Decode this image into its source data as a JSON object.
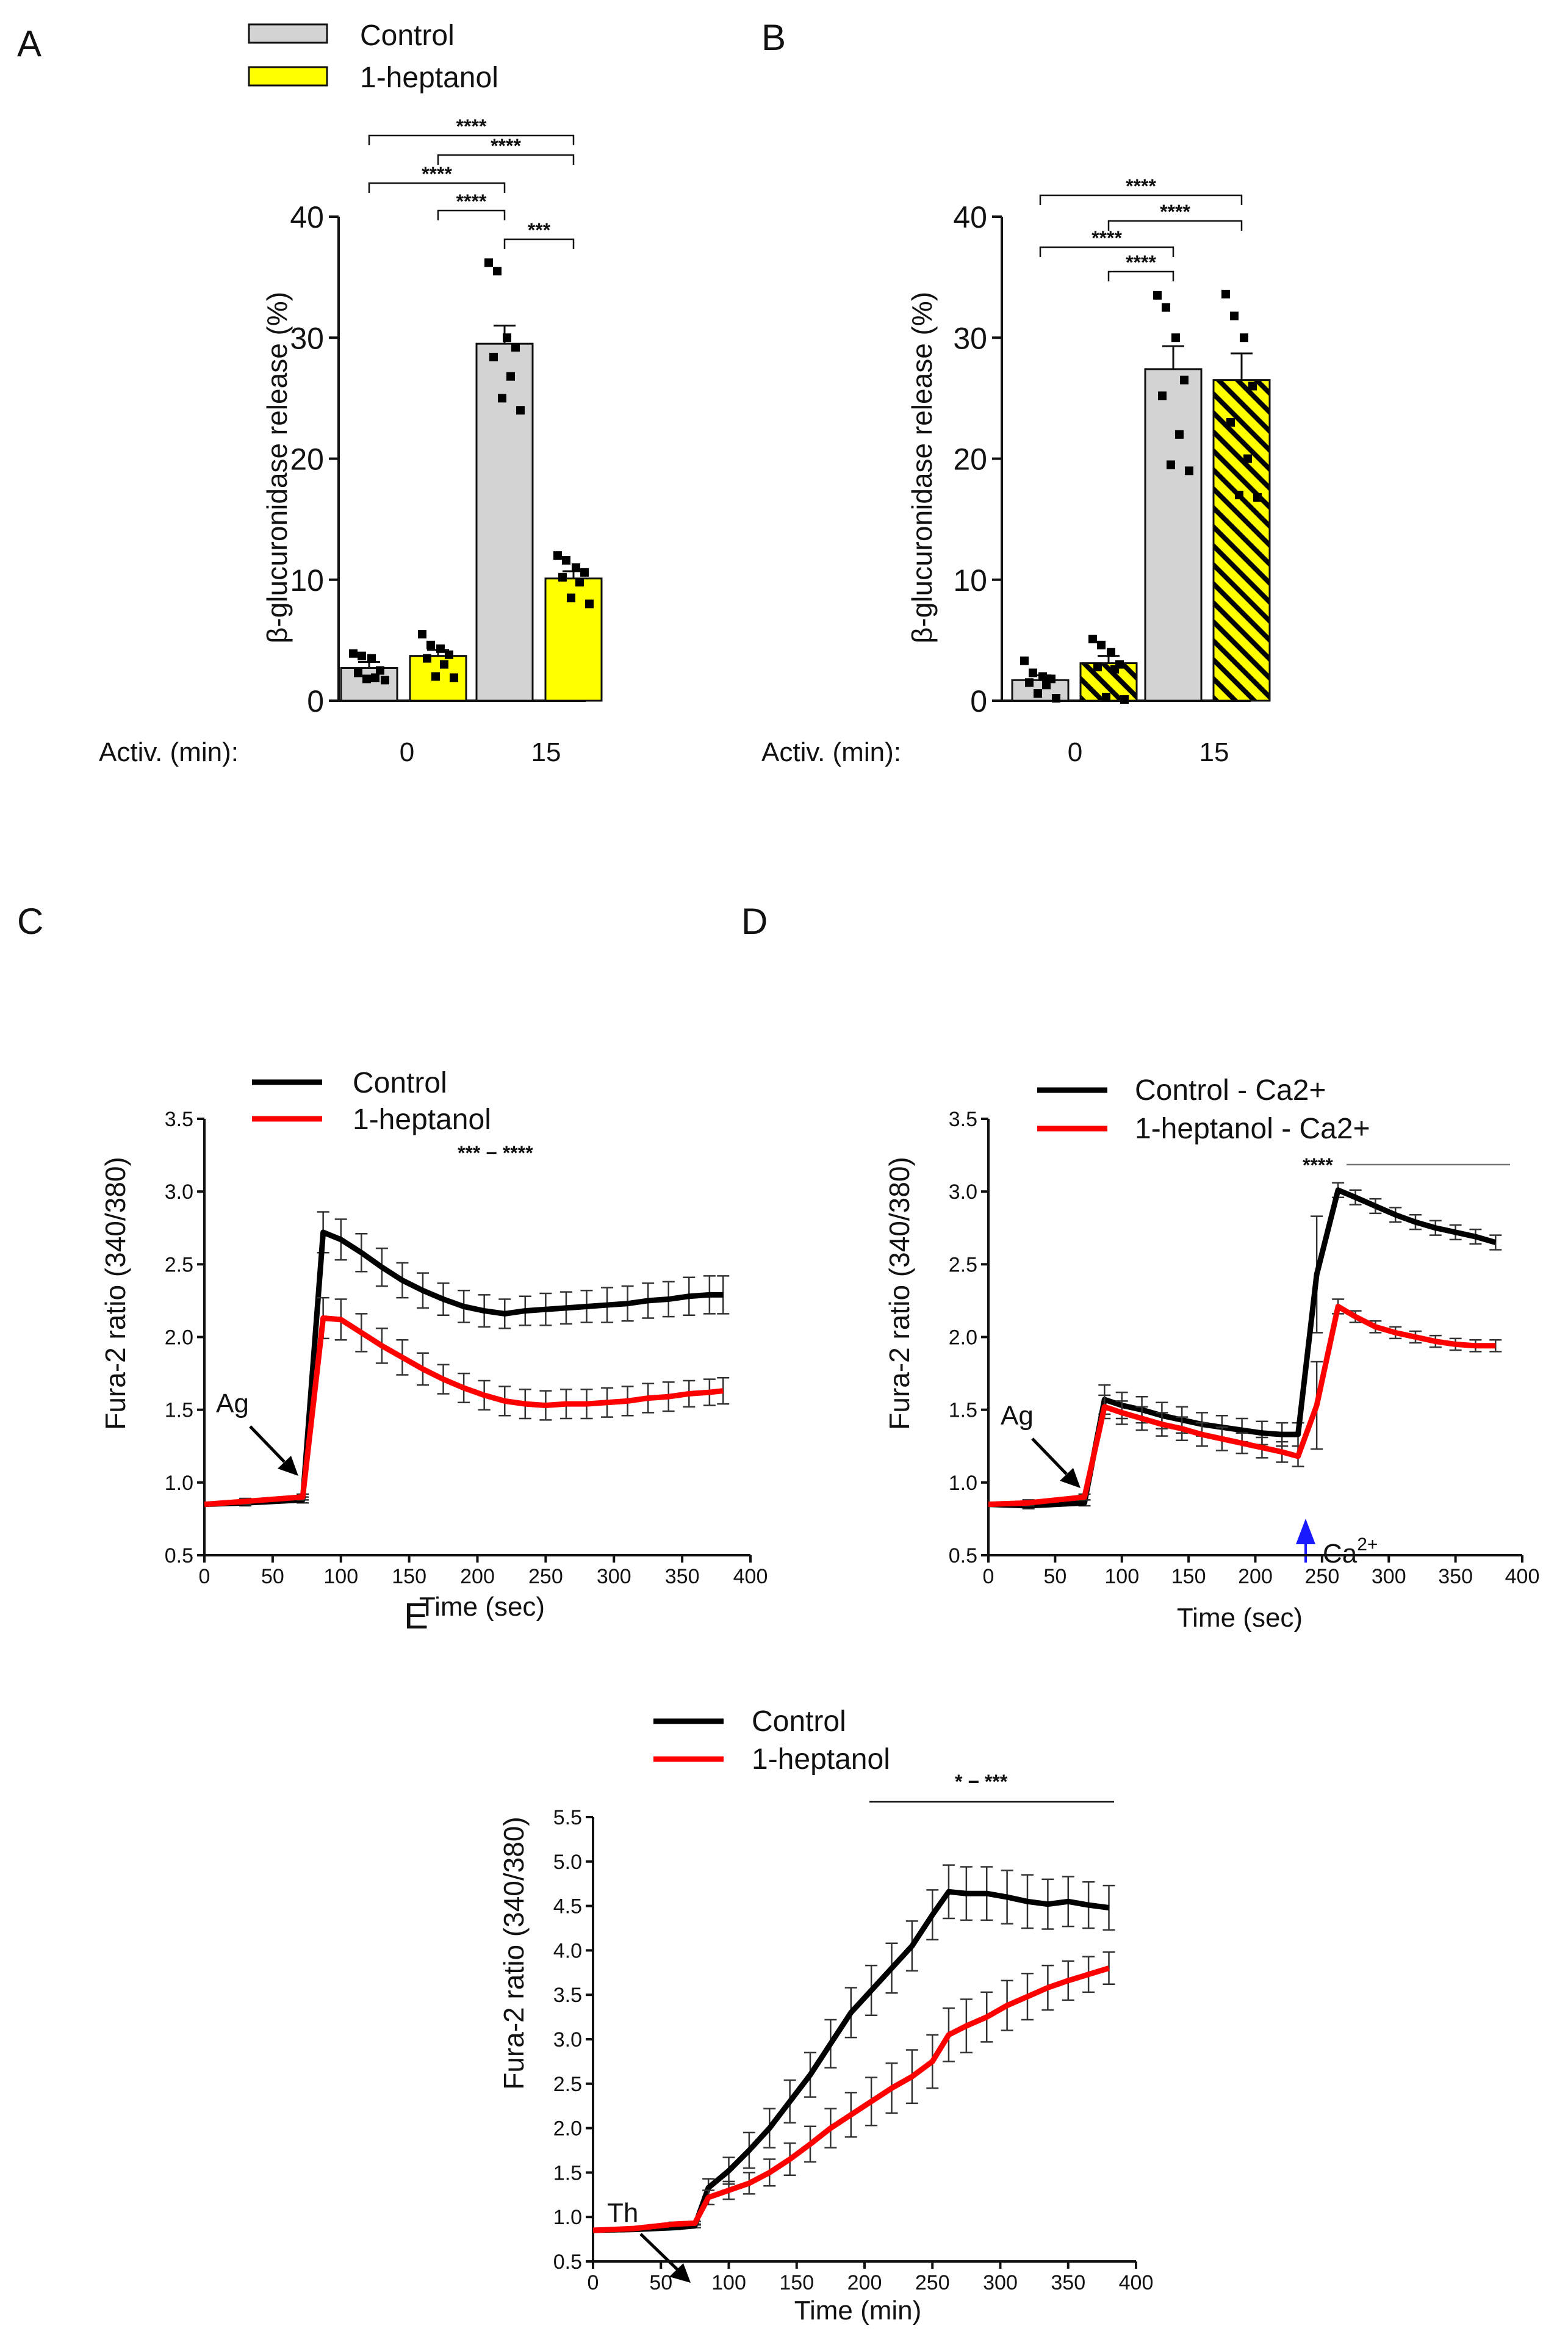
{
  "panels": {
    "A": {
      "letter": "A"
    },
    "B": {
      "letter": "B"
    },
    "C": {
      "letter": "C"
    },
    "D": {
      "letter": "D"
    },
    "E": {
      "letter": "E"
    }
  },
  "legend_ab": {
    "control": "Control",
    "heptanol": "1-heptanol"
  },
  "colors": {
    "control_bar": "#d3d3d3",
    "heptanol_bar": "#ffff00",
    "control_line": "#000000",
    "heptanol_line": "#ff0000",
    "calcium_arrow": "#1a1aff"
  },
  "annotations": {
    "ag_c": "Ag",
    "ag_d": "Ag",
    "th_e": "Th",
    "ca_d": "Ca",
    "ca_sup": "2+",
    "sig_c": "*** − ****",
    "sig_d": "****",
    "sig_e": "* − ***"
  },
  "chart_data": [
    {
      "id": "A",
      "type": "bar",
      "title": "",
      "ylabel": "β-glucuronidase release (%)",
      "xlabel": "Activ. (min):",
      "ylim": [
        0,
        40
      ],
      "yticks": [
        "0",
        "10",
        "20",
        "30",
        "40"
      ],
      "categories": [
        "0",
        "15"
      ],
      "series": [
        {
          "name": "Control",
          "values": [
            2.7,
            29.5
          ],
          "sem": [
            0.5,
            1.5
          ],
          "points": [
            [
              3.9,
              3.7,
              3.5,
              2.5,
              2.3,
              1.9,
              1.8,
              1.7
            ],
            [
              36.2,
              35.5,
              30.0,
              29.2,
              28.4,
              26.8,
              25.0,
              24.0
            ]
          ]
        },
        {
          "name": "1-heptanol",
          "values": [
            3.7,
            10.1
          ],
          "sem": [
            0.5,
            0.6
          ],
          "points": [
            [
              5.5,
              4.6,
              4.3,
              3.8,
              3.5,
              3.0,
              2.0,
              1.9
            ],
            [
              12.0,
              11.6,
              11.0,
              10.6,
              10.2,
              9.8,
              8.5,
              8.0
            ]
          ]
        }
      ],
      "significance": [
        {
          "from": "Control 0",
          "to": "1-heptanol 15",
          "label": "****"
        },
        {
          "from": "1-heptanol 0",
          "to": "1-heptanol 15",
          "label": "****"
        },
        {
          "from": "Control 0",
          "to": "Control 15",
          "label": "****"
        },
        {
          "from": "1-heptanol 0",
          "to": "Control 15",
          "label": "****"
        },
        {
          "from": "Control 15",
          "to": "1-heptanol 15",
          "label": "***"
        }
      ]
    },
    {
      "id": "B",
      "type": "bar",
      "title": "",
      "ylabel": "β-glucuronidase release (%)",
      "xlabel": "Activ. (min):",
      "ylim": [
        0,
        40
      ],
      "yticks": [
        "0",
        "10",
        "20",
        "30",
        "40"
      ],
      "categories": [
        "0",
        "15"
      ],
      "series": [
        {
          "name": "Control",
          "values": [
            1.7,
            27.4
          ],
          "sem": [
            0.4,
            1.9
          ],
          "points": [
            [
              3.3,
              2.3,
              2.0,
              1.8,
              1.5,
              1.3,
              0.6,
              0.2
            ],
            [
              33.5,
              32.5,
              30.0,
              26.5,
              25.2,
              22.0,
              19.5,
              19.0
            ]
          ]
        },
        {
          "name": "1-heptanol (hatched)",
          "values": [
            3.1,
            26.5
          ],
          "sem": [
            0.6,
            2.2
          ],
          "points": [
            [
              5.1,
              4.6,
              4.0,
              3.0,
              2.8,
              2.6,
              0.3,
              0.1
            ],
            [
              33.6,
              31.8,
              30.0,
              26.0,
              23.0,
              20.0,
              17.0,
              16.8
            ]
          ]
        }
      ],
      "significance": [
        {
          "from": "Control 0",
          "to": "1-heptanol 15",
          "label": "****"
        },
        {
          "from": "1-heptanol 0",
          "to": "1-heptanol 15",
          "label": "****"
        },
        {
          "from": "Control 0",
          "to": "Control 15",
          "label": "****"
        },
        {
          "from": "1-heptanol 0",
          "to": "Control 15",
          "label": "****"
        }
      ]
    },
    {
      "id": "C",
      "type": "line",
      "title": "",
      "xlabel": "Time (sec)",
      "ylabel": "Fura-2 ratio (340/380)",
      "xlim": [
        0,
        400
      ],
      "ylim": [
        0.5,
        3.5
      ],
      "xticks": [
        "0",
        "50",
        "100",
        "150",
        "200",
        "250",
        "300",
        "350",
        "400"
      ],
      "yticks": [
        "0.5",
        "1.0",
        "1.5",
        "2.0",
        "2.5",
        "3.0",
        "3.5"
      ],
      "series": [
        {
          "name": "Control",
          "x": [
            0,
            30,
            72,
            87,
            100,
            115,
            130,
            145,
            160,
            175,
            190,
            205,
            220,
            235,
            250,
            265,
            280,
            295,
            310,
            325,
            340,
            355,
            370,
            380
          ],
          "y": [
            0.85,
            0.86,
            0.88,
            2.72,
            2.67,
            2.58,
            2.48,
            2.39,
            2.32,
            2.26,
            2.21,
            2.18,
            2.16,
            2.18,
            2.19,
            2.2,
            2.21,
            2.22,
            2.23,
            2.25,
            2.26,
            2.28,
            2.29,
            2.29
          ],
          "err": [
            0.02,
            0.02,
            0.02,
            0.14,
            0.14,
            0.13,
            0.13,
            0.12,
            0.12,
            0.11,
            0.11,
            0.11,
            0.1,
            0.1,
            0.11,
            0.11,
            0.11,
            0.12,
            0.12,
            0.12,
            0.12,
            0.13,
            0.13,
            0.13
          ]
        },
        {
          "name": "1-heptanol",
          "x": [
            0,
            30,
            72,
            87,
            100,
            115,
            130,
            145,
            160,
            175,
            190,
            205,
            220,
            235,
            250,
            265,
            280,
            295,
            310,
            325,
            340,
            355,
            370,
            380
          ],
          "y": [
            0.85,
            0.87,
            0.9,
            2.13,
            2.12,
            2.03,
            1.94,
            1.86,
            1.78,
            1.71,
            1.65,
            1.6,
            1.56,
            1.54,
            1.53,
            1.54,
            1.54,
            1.55,
            1.56,
            1.58,
            1.59,
            1.61,
            1.62,
            1.63
          ],
          "err": [
            0.02,
            0.02,
            0.02,
            0.14,
            0.14,
            0.13,
            0.12,
            0.12,
            0.11,
            0.1,
            0.1,
            0.1,
            0.1,
            0.1,
            0.1,
            0.1,
            0.1,
            0.1,
            0.1,
            0.1,
            0.1,
            0.09,
            0.09,
            0.09
          ]
        }
      ]
    },
    {
      "id": "D",
      "type": "line",
      "title": "",
      "xlabel": "Time (sec)",
      "ylabel": "Fura-2 ratio (340/380)",
      "xlim": [
        0,
        400
      ],
      "ylim": [
        0.5,
        3.5
      ],
      "xticks": [
        "0",
        "50",
        "100",
        "150",
        "200",
        "250",
        "300",
        "350",
        "400"
      ],
      "yticks": [
        "0.5",
        "1.0",
        "1.5",
        "2.0",
        "2.5",
        "3.0",
        "3.5"
      ],
      "series": [
        {
          "name": "Control - Ca2+",
          "x": [
            0,
            30,
            72,
            87,
            100,
            115,
            130,
            145,
            160,
            175,
            190,
            205,
            220,
            232,
            246,
            262,
            275,
            290,
            305,
            320,
            335,
            350,
            365,
            380
          ],
          "y": [
            0.85,
            0.84,
            0.86,
            1.57,
            1.53,
            1.5,
            1.46,
            1.43,
            1.4,
            1.38,
            1.36,
            1.34,
            1.33,
            1.33,
            2.43,
            3.01,
            2.96,
            2.9,
            2.84,
            2.79,
            2.75,
            2.72,
            2.69,
            2.65
          ],
          "err": [
            0.02,
            0.02,
            0.02,
            0.1,
            0.09,
            0.09,
            0.09,
            0.09,
            0.08,
            0.08,
            0.08,
            0.08,
            0.08,
            0.08,
            0.4,
            0.05,
            0.05,
            0.05,
            0.05,
            0.05,
            0.05,
            0.05,
            0.05,
            0.05
          ]
        },
        {
          "name": "1-heptanol - Ca2+",
          "x": [
            0,
            30,
            72,
            87,
            100,
            115,
            130,
            145,
            160,
            175,
            190,
            205,
            220,
            232,
            246,
            262,
            275,
            290,
            305,
            320,
            335,
            350,
            365,
            380
          ],
          "y": [
            0.85,
            0.86,
            0.9,
            1.52,
            1.48,
            1.44,
            1.4,
            1.37,
            1.33,
            1.3,
            1.27,
            1.24,
            1.21,
            1.18,
            1.53,
            2.21,
            2.14,
            2.07,
            2.03,
            2.0,
            1.97,
            1.95,
            1.94,
            1.94
          ],
          "err": [
            0.02,
            0.02,
            0.02,
            0.08,
            0.08,
            0.08,
            0.08,
            0.08,
            0.08,
            0.08,
            0.07,
            0.07,
            0.07,
            0.07,
            0.3,
            0.05,
            0.04,
            0.04,
            0.04,
            0.04,
            0.04,
            0.04,
            0.04,
            0.04
          ]
        }
      ]
    },
    {
      "id": "E",
      "type": "line",
      "title": "",
      "xlabel": "Time (min)",
      "ylabel": "Fura-2 ratio (340/380)",
      "xlim": [
        0,
        400
      ],
      "ylim": [
        0.5,
        5.5
      ],
      "xticks": [
        "0",
        "50",
        "100",
        "150",
        "200",
        "250",
        "300",
        "350",
        "400"
      ],
      "yticks": [
        "0.5",
        "1.0",
        "1.5",
        "2.0",
        "2.5",
        "3.0",
        "3.5",
        "4.0",
        "4.5",
        "5.0",
        "5.5"
      ],
      "series": [
        {
          "name": "Control",
          "x": [
            0,
            30,
            60,
            75,
            85,
            100,
            115,
            130,
            145,
            160,
            175,
            190,
            205,
            220,
            235,
            250,
            262,
            275,
            290,
            305,
            320,
            335,
            350,
            365,
            380
          ],
          "y": [
            0.85,
            0.86,
            0.88,
            0.9,
            1.33,
            1.52,
            1.75,
            2.0,
            2.3,
            2.6,
            2.95,
            3.3,
            3.55,
            3.8,
            4.05,
            4.4,
            4.66,
            4.64,
            4.64,
            4.6,
            4.55,
            4.52,
            4.55,
            4.51,
            4.48
          ],
          "err": [
            0.02,
            0.02,
            0.02,
            0.02,
            0.1,
            0.15,
            0.2,
            0.22,
            0.24,
            0.25,
            0.27,
            0.28,
            0.28,
            0.28,
            0.28,
            0.28,
            0.3,
            0.3,
            0.3,
            0.3,
            0.3,
            0.28,
            0.28,
            0.26,
            0.25
          ]
        },
        {
          "name": "1-heptanol",
          "x": [
            0,
            30,
            60,
            75,
            85,
            100,
            115,
            130,
            145,
            160,
            175,
            190,
            205,
            220,
            235,
            250,
            262,
            275,
            290,
            305,
            320,
            335,
            350,
            365,
            380
          ],
          "y": [
            0.85,
            0.87,
            0.92,
            0.93,
            1.22,
            1.3,
            1.38,
            1.5,
            1.65,
            1.82,
            2.0,
            2.15,
            2.3,
            2.45,
            2.58,
            2.75,
            3.05,
            3.15,
            3.25,
            3.38,
            3.48,
            3.58,
            3.66,
            3.73,
            3.8
          ],
          "err": [
            0.02,
            0.02,
            0.02,
            0.02,
            0.08,
            0.1,
            0.12,
            0.15,
            0.18,
            0.2,
            0.22,
            0.25,
            0.27,
            0.28,
            0.3,
            0.3,
            0.3,
            0.3,
            0.28,
            0.28,
            0.26,
            0.25,
            0.22,
            0.2,
            0.18
          ]
        }
      ]
    }
  ]
}
